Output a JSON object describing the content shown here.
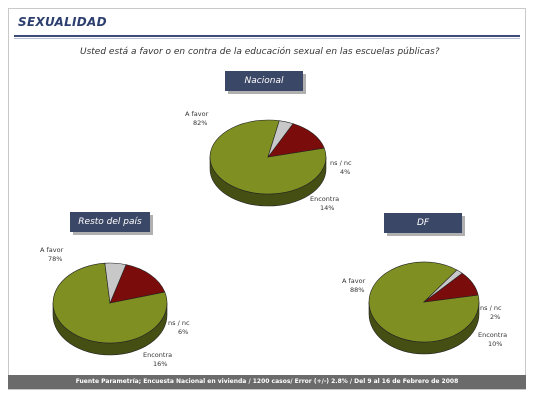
{
  "section_title": "SEXUALIDAD",
  "question": "Usted está a favor o en contra de la educación sexual en las escuelas públicas?",
  "footer": "Fuente Parametría; Encuesta Nacional en vivienda / 1200 casos/ Error (+/-) 2.8% / Del 9 al 16 de Febrero de 2008",
  "colors": {
    "a_favor": "#7f8f22",
    "encontra": "#7a0c0c",
    "ns_nc": "#c8c8c8"
  },
  "chart_data": [
    {
      "type": "pie",
      "title": "Nacional",
      "categories": [
        "A favor",
        "Encontra",
        "ns / nc"
      ],
      "values": [
        82,
        14,
        4
      ],
      "labels": [
        "82%",
        "14%",
        "4%"
      ]
    },
    {
      "type": "pie",
      "title": "Resto del país",
      "categories": [
        "A favor",
        "Encontra",
        "ns / nc"
      ],
      "values": [
        78,
        16,
        6
      ],
      "labels": [
        "78%",
        "16%",
        "6%"
      ]
    },
    {
      "type": "pie",
      "title": "DF",
      "categories": [
        "A favor",
        "Encontra",
        "ns / nc"
      ],
      "values": [
        88,
        10,
        2
      ],
      "labels": [
        "88%",
        "10%",
        "2%"
      ]
    }
  ]
}
